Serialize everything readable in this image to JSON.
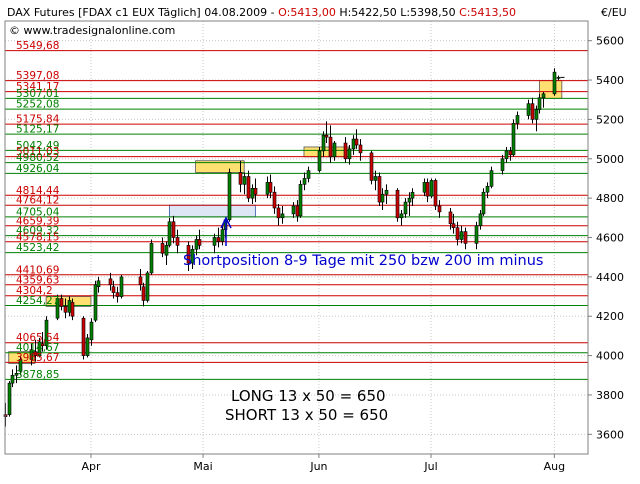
{
  "header": {
    "symbol": "DAX Futures [FDAX c1 EUX  Täglich] 04.08.2009 - ",
    "open": "O:5413,00",
    "high": "H:5422,50",
    "low": "L:5398,50",
    "close": "C:5413,50",
    "website": "© www.tradesignalonline.com",
    "currency_unit": "€/EU"
  },
  "colors": {
    "resistance_line": "#cc0000",
    "support_line": "#008000",
    "candle_up": "#008000",
    "candle_down": "#cc0000",
    "zone_fill": "#ffe070",
    "zone_fill_blue": "#dce6f5",
    "annotation_blue": "#0000cc"
  },
  "chart_data": {
    "type": "candlestick",
    "ylim": [
      3500,
      5700
    ],
    "yticks": [
      3600,
      3800,
      4000,
      4200,
      4400,
      4600,
      4800,
      5000,
      5200,
      5400,
      5600
    ],
    "ytick_labels": [
      "3600",
      "3800",
      "4000",
      "4200",
      "4400",
      "4600",
      "4800",
      "5000",
      "5200",
      "5400",
      "5600"
    ],
    "x_months": [
      {
        "label": "Apr",
        "date": "2009-04-01"
      },
      {
        "label": "Mai",
        "date": "2009-05-01"
      },
      {
        "label": "Jun",
        "date": "2009-06-01"
      },
      {
        "label": "Jul",
        "date": "2009-07-01"
      },
      {
        "label": "Aug",
        "date": "2009-08-03"
      }
    ],
    "xlim": [
      "2009-03-09",
      "2009-08-12"
    ],
    "grid": true,
    "levels": [
      {
        "label": "5549,68",
        "value": 5549.68,
        "kind": "resistance"
      },
      {
        "label": "5397,08",
        "value": 5397.08,
        "kind": "resistance"
      },
      {
        "label": "5341,17",
        "value": 5341.17,
        "kind": "resistance"
      },
      {
        "label": "5307,01",
        "value": 5307.01,
        "kind": "support"
      },
      {
        "label": "5252,08",
        "value": 5252.08,
        "kind": "support"
      },
      {
        "label": "5175,84",
        "value": 5175.84,
        "kind": "resistance"
      },
      {
        "label": "5125,17",
        "value": 5125.17,
        "kind": "support"
      },
      {
        "label": "5042,49",
        "value": 5042.49,
        "kind": "support"
      },
      {
        "label": "5011,03",
        "value": 5011.03,
        "kind": "resistance"
      },
      {
        "label": "4980,52",
        "value": 4980.52,
        "kind": "support"
      },
      {
        "label": "4926,04",
        "value": 4926.04,
        "kind": "support"
      },
      {
        "label": "4814,44",
        "value": 4814.44,
        "kind": "resistance"
      },
      {
        "label": "4764,12",
        "value": 4764.12,
        "kind": "resistance"
      },
      {
        "label": "4705,04",
        "value": 4705.04,
        "kind": "support"
      },
      {
        "label": "4659,39",
        "value": 4659.39,
        "kind": "resistance"
      },
      {
        "label": "4609,32",
        "value": 4609.32,
        "kind": "support"
      },
      {
        "label": "4578,15",
        "value": 4578.15,
        "kind": "resistance"
      },
      {
        "label": "4523,42",
        "value": 4523.42,
        "kind": "support"
      },
      {
        "label": "4410,69",
        "value": 4410.69,
        "kind": "resistance"
      },
      {
        "label": "4359,63",
        "value": 4359.63,
        "kind": "resistance"
      },
      {
        "label": "4304,2",
        "value": 4304.2,
        "kind": "resistance"
      },
      {
        "label": "4254,27",
        "value": 4254.27,
        "kind": "support"
      },
      {
        "label": "4065,54",
        "value": 4065.54,
        "kind": "resistance"
      },
      {
        "label": "4014,67",
        "value": 4014.67,
        "kind": "support"
      },
      {
        "label": "3965,67",
        "value": 3965.67,
        "kind": "resistance"
      },
      {
        "label": "3878,85",
        "value": 3878.85,
        "kind": "support"
      }
    ],
    "zones": [
      {
        "date_start": "2009-03-10",
        "date_end": "2009-03-17",
        "low": 3960,
        "high": 4020,
        "fill": "yellow"
      },
      {
        "date_start": "2009-03-20",
        "date_end": "2009-04-01",
        "low": 4250,
        "high": 4300,
        "fill": "yellow"
      },
      {
        "date_start": "2009-04-29",
        "date_end": "2009-05-12",
        "low": 4930,
        "high": 4990,
        "fill": "yellow"
      },
      {
        "date_start": "2009-04-22",
        "date_end": "2009-05-15",
        "low": 4705,
        "high": 4764,
        "fill": "blue"
      },
      {
        "date_start": "2009-05-28",
        "date_end": "2009-06-09",
        "low": 5010,
        "high": 5060,
        "fill": "yellow"
      },
      {
        "date_start": "2009-07-30",
        "date_end": "2009-08-05",
        "low": 5307,
        "high": 5397,
        "fill": "yellow"
      }
    ],
    "candles": [
      {
        "date": "2009-03-09",
        "o": 3700,
        "h": 3760,
        "l": 3640,
        "c": 3690
      },
      {
        "date": "2009-03-10",
        "o": 3700,
        "h": 3870,
        "l": 3690,
        "c": 3860
      },
      {
        "date": "2009-03-11",
        "o": 3860,
        "h": 3930,
        "l": 3840,
        "c": 3900
      },
      {
        "date": "2009-03-12",
        "o": 3900,
        "h": 3950,
        "l": 3860,
        "c": 3910
      },
      {
        "date": "2009-03-13",
        "o": 3920,
        "h": 4000,
        "l": 3900,
        "c": 3980
      },
      {
        "date": "2009-03-16",
        "o": 3980,
        "h": 4060,
        "l": 3950,
        "c": 4030
      },
      {
        "date": "2009-03-17",
        "o": 4020,
        "h": 4080,
        "l": 3970,
        "c": 4000
      },
      {
        "date": "2009-03-18",
        "o": 4000,
        "h": 4090,
        "l": 3990,
        "c": 4070
      },
      {
        "date": "2009-03-19",
        "o": 4060,
        "h": 4120,
        "l": 4020,
        "c": 4050
      },
      {
        "date": "2009-03-20",
        "o": 4050,
        "h": 4200,
        "l": 4030,
        "c": 4180
      },
      {
        "date": "2009-03-23",
        "o": 4190,
        "h": 4310,
        "l": 4180,
        "c": 4290
      },
      {
        "date": "2009-03-24",
        "o": 4290,
        "h": 4310,
        "l": 4230,
        "c": 4250
      },
      {
        "date": "2009-03-25",
        "o": 4250,
        "h": 4290,
        "l": 4190,
        "c": 4220
      },
      {
        "date": "2009-03-26",
        "o": 4220,
        "h": 4300,
        "l": 4200,
        "c": 4280
      },
      {
        "date": "2009-03-27",
        "o": 4270,
        "h": 4290,
        "l": 4180,
        "c": 4200
      },
      {
        "date": "2009-03-30",
        "o": 4190,
        "h": 4200,
        "l": 3980,
        "c": 4000
      },
      {
        "date": "2009-03-31",
        "o": 4000,
        "h": 4110,
        "l": 3990,
        "c": 4090
      },
      {
        "date": "2009-04-01",
        "o": 4080,
        "h": 4190,
        "l": 4050,
        "c": 4170
      },
      {
        "date": "2009-04-02",
        "o": 4180,
        "h": 4380,
        "l": 4170,
        "c": 4360
      },
      {
        "date": "2009-04-03",
        "o": 4350,
        "h": 4400,
        "l": 4320,
        "c": 4380
      },
      {
        "date": "2009-04-06",
        "o": 4390,
        "h": 4420,
        "l": 4330,
        "c": 4360
      },
      {
        "date": "2009-04-07",
        "o": 4350,
        "h": 4380,
        "l": 4290,
        "c": 4320
      },
      {
        "date": "2009-04-08",
        "o": 4320,
        "h": 4350,
        "l": 4270,
        "c": 4300
      },
      {
        "date": "2009-04-09",
        "o": 4300,
        "h": 4410,
        "l": 4290,
        "c": 4400
      },
      {
        "date": "2009-04-14",
        "o": 4400,
        "h": 4440,
        "l": 4330,
        "c": 4360
      },
      {
        "date": "2009-04-15",
        "o": 4350,
        "h": 4370,
        "l": 4250,
        "c": 4280
      },
      {
        "date": "2009-04-16",
        "o": 4280,
        "h": 4430,
        "l": 4270,
        "c": 4420
      },
      {
        "date": "2009-04-17",
        "o": 4420,
        "h": 4590,
        "l": 4410,
        "c": 4570
      },
      {
        "date": "2009-04-20",
        "o": 4570,
        "h": 4600,
        "l": 4500,
        "c": 4520
      },
      {
        "date": "2009-04-21",
        "o": 4510,
        "h": 4580,
        "l": 4460,
        "c": 4560
      },
      {
        "date": "2009-04-22",
        "o": 4560,
        "h": 4700,
        "l": 4550,
        "c": 4680
      },
      {
        "date": "2009-04-23",
        "o": 4680,
        "h": 4710,
        "l": 4570,
        "c": 4600
      },
      {
        "date": "2009-04-24",
        "o": 4600,
        "h": 4640,
        "l": 4520,
        "c": 4560
      },
      {
        "date": "2009-04-27",
        "o": 4560,
        "h": 4580,
        "l": 4430,
        "c": 4470
      },
      {
        "date": "2009-04-28",
        "o": 4470,
        "h": 4560,
        "l": 4440,
        "c": 4540
      },
      {
        "date": "2009-04-29",
        "o": 4540,
        "h": 4610,
        "l": 4510,
        "c": 4590
      },
      {
        "date": "2009-04-30",
        "o": 4590,
        "h": 4640,
        "l": 4540,
        "c": 4560
      },
      {
        "date": "2009-05-04",
        "o": 4560,
        "h": 4620,
        "l": 4520,
        "c": 4600
      },
      {
        "date": "2009-05-05",
        "o": 4600,
        "h": 4650,
        "l": 4550,
        "c": 4580
      },
      {
        "date": "2009-05-06",
        "o": 4580,
        "h": 4660,
        "l": 4560,
        "c": 4640
      },
      {
        "date": "2009-05-07",
        "o": 4640,
        "h": 4700,
        "l": 4600,
        "c": 4690
      },
      {
        "date": "2009-05-08",
        "o": 4690,
        "h": 4950,
        "l": 4680,
        "c": 4930
      },
      {
        "date": "2009-05-11",
        "o": 4930,
        "h": 4990,
        "l": 4830,
        "c": 4870
      },
      {
        "date": "2009-05-12",
        "o": 4870,
        "h": 4930,
        "l": 4820,
        "c": 4910
      },
      {
        "date": "2009-05-13",
        "o": 4910,
        "h": 4940,
        "l": 4780,
        "c": 4800
      },
      {
        "date": "2009-05-14",
        "o": 4800,
        "h": 4870,
        "l": 4770,
        "c": 4850
      },
      {
        "date": "2009-05-15",
        "o": 4850,
        "h": 4900,
        "l": 4780,
        "c": 4820
      },
      {
        "date": "2009-05-18",
        "o": 4820,
        "h": 4910,
        "l": 4800,
        "c": 4880
      },
      {
        "date": "2009-05-19",
        "o": 4880,
        "h": 4920,
        "l": 4800,
        "c": 4830
      },
      {
        "date": "2009-05-20",
        "o": 4830,
        "h": 4860,
        "l": 4720,
        "c": 4750
      },
      {
        "date": "2009-05-21",
        "o": 4750,
        "h": 4770,
        "l": 4660,
        "c": 4700
      },
      {
        "date": "2009-05-22",
        "o": 4700,
        "h": 4760,
        "l": 4670,
        "c": 4720
      },
      {
        "date": "2009-05-25",
        "o": 4720,
        "h": 4780,
        "l": 4700,
        "c": 4760
      },
      {
        "date": "2009-05-26",
        "o": 4760,
        "h": 4790,
        "l": 4680,
        "c": 4710
      },
      {
        "date": "2009-05-27",
        "o": 4710,
        "h": 4890,
        "l": 4700,
        "c": 4870
      },
      {
        "date": "2009-05-28",
        "o": 4870,
        "h": 4930,
        "l": 4840,
        "c": 4900
      },
      {
        "date": "2009-05-29",
        "o": 4900,
        "h": 4960,
        "l": 4880,
        "c": 4940
      },
      {
        "date": "2009-06-01",
        "o": 4940,
        "h": 5060,
        "l": 4930,
        "c": 5040
      },
      {
        "date": "2009-06-02",
        "o": 5040,
        "h": 5140,
        "l": 5010,
        "c": 5120
      },
      {
        "date": "2009-06-03",
        "o": 5120,
        "h": 5190,
        "l": 5080,
        "c": 5110
      },
      {
        "date": "2009-06-04",
        "o": 5110,
        "h": 5170,
        "l": 4980,
        "c": 5010
      },
      {
        "date": "2009-06-05",
        "o": 5010,
        "h": 5090,
        "l": 4990,
        "c": 5080
      },
      {
        "date": "2009-06-08",
        "o": 5080,
        "h": 5110,
        "l": 4980,
        "c": 5000
      },
      {
        "date": "2009-06-09",
        "o": 5000,
        "h": 5070,
        "l": 4970,
        "c": 5050
      },
      {
        "date": "2009-06-10",
        "o": 5050,
        "h": 5120,
        "l": 5020,
        "c": 5100
      },
      {
        "date": "2009-06-11",
        "o": 5100,
        "h": 5150,
        "l": 5050,
        "c": 5070
      },
      {
        "date": "2009-06-12",
        "o": 5070,
        "h": 5100,
        "l": 4990,
        "c": 5030
      },
      {
        "date": "2009-06-15",
        "o": 5030,
        "h": 5040,
        "l": 4870,
        "c": 4890
      },
      {
        "date": "2009-06-16",
        "o": 4890,
        "h": 4940,
        "l": 4840,
        "c": 4910
      },
      {
        "date": "2009-06-17",
        "o": 4910,
        "h": 4930,
        "l": 4760,
        "c": 4780
      },
      {
        "date": "2009-06-18",
        "o": 4780,
        "h": 4850,
        "l": 4740,
        "c": 4820
      },
      {
        "date": "2009-06-19",
        "o": 4820,
        "h": 4870,
        "l": 4770,
        "c": 4840
      },
      {
        "date": "2009-06-22",
        "o": 4840,
        "h": 4850,
        "l": 4680,
        "c": 4700
      },
      {
        "date": "2009-06-23",
        "o": 4700,
        "h": 4740,
        "l": 4660,
        "c": 4720
      },
      {
        "date": "2009-06-24",
        "o": 4720,
        "h": 4800,
        "l": 4700,
        "c": 4780
      },
      {
        "date": "2009-06-25",
        "o": 4780,
        "h": 4830,
        "l": 4710,
        "c": 4800
      },
      {
        "date": "2009-06-26",
        "o": 4800,
        "h": 4850,
        "l": 4760,
        "c": 4830
      },
      {
        "date": "2009-06-29",
        "o": 4830,
        "h": 4900,
        "l": 4810,
        "c": 4880
      },
      {
        "date": "2009-06-30",
        "o": 4880,
        "h": 4900,
        "l": 4780,
        "c": 4810
      },
      {
        "date": "2009-07-01",
        "o": 4810,
        "h": 4900,
        "l": 4800,
        "c": 4890
      },
      {
        "date": "2009-07-02",
        "o": 4890,
        "h": 4900,
        "l": 4740,
        "c": 4760
      },
      {
        "date": "2009-07-03",
        "o": 4760,
        "h": 4790,
        "l": 4700,
        "c": 4730
      },
      {
        "date": "2009-07-06",
        "o": 4730,
        "h": 4750,
        "l": 4640,
        "c": 4670
      },
      {
        "date": "2009-07-07",
        "o": 4670,
        "h": 4720,
        "l": 4620,
        "c": 4650
      },
      {
        "date": "2009-07-08",
        "o": 4650,
        "h": 4680,
        "l": 4560,
        "c": 4590
      },
      {
        "date": "2009-07-09",
        "o": 4590,
        "h": 4660,
        "l": 4570,
        "c": 4630
      },
      {
        "date": "2009-07-10",
        "o": 4630,
        "h": 4650,
        "l": 4540,
        "c": 4570
      },
      {
        "date": "2009-07-13",
        "o": 4570,
        "h": 4680,
        "l": 4540,
        "c": 4660
      },
      {
        "date": "2009-07-14",
        "o": 4660,
        "h": 4740,
        "l": 4640,
        "c": 4720
      },
      {
        "date": "2009-07-15",
        "o": 4720,
        "h": 4850,
        "l": 4710,
        "c": 4830
      },
      {
        "date": "2009-07-16",
        "o": 4830,
        "h": 4880,
        "l": 4800,
        "c": 4860
      },
      {
        "date": "2009-07-17",
        "o": 4860,
        "h": 4960,
        "l": 4850,
        "c": 4940
      },
      {
        "date": "2009-07-20",
        "o": 4940,
        "h": 5020,
        "l": 4920,
        "c": 5000
      },
      {
        "date": "2009-07-21",
        "o": 5000,
        "h": 5060,
        "l": 4980,
        "c": 5040
      },
      {
        "date": "2009-07-22",
        "o": 5040,
        "h": 5060,
        "l": 4990,
        "c": 5020
      },
      {
        "date": "2009-07-23",
        "o": 5020,
        "h": 5200,
        "l": 5010,
        "c": 5180
      },
      {
        "date": "2009-07-24",
        "o": 5180,
        "h": 5240,
        "l": 5150,
        "c": 5220
      },
      {
        "date": "2009-07-27",
        "o": 5220,
        "h": 5300,
        "l": 5200,
        "c": 5280
      },
      {
        "date": "2009-07-28",
        "o": 5280,
        "h": 5310,
        "l": 5180,
        "c": 5200
      },
      {
        "date": "2009-07-29",
        "o": 5200,
        "h": 5270,
        "l": 5140,
        "c": 5250
      },
      {
        "date": "2009-07-30",
        "o": 5250,
        "h": 5330,
        "l": 5230,
        "c": 5310
      },
      {
        "date": "2009-07-31",
        "o": 5310,
        "h": 5340,
        "l": 5260,
        "c": 5330
      },
      {
        "date": "2009-08-03",
        "o": 5330,
        "h": 5460,
        "l": 5320,
        "c": 5440
      },
      {
        "date": "2009-08-04",
        "o": 5413,
        "h": 5422.5,
        "l": 5398.5,
        "c": 5413.5
      }
    ]
  },
  "annotations": {
    "short_position": "Shortposition 8-9 Tage mit 250 bzw 200 im minus",
    "long_summary": "LONG 13 x 50 = 650",
    "short_summary": "SHORT 13 x 50 = 650"
  }
}
